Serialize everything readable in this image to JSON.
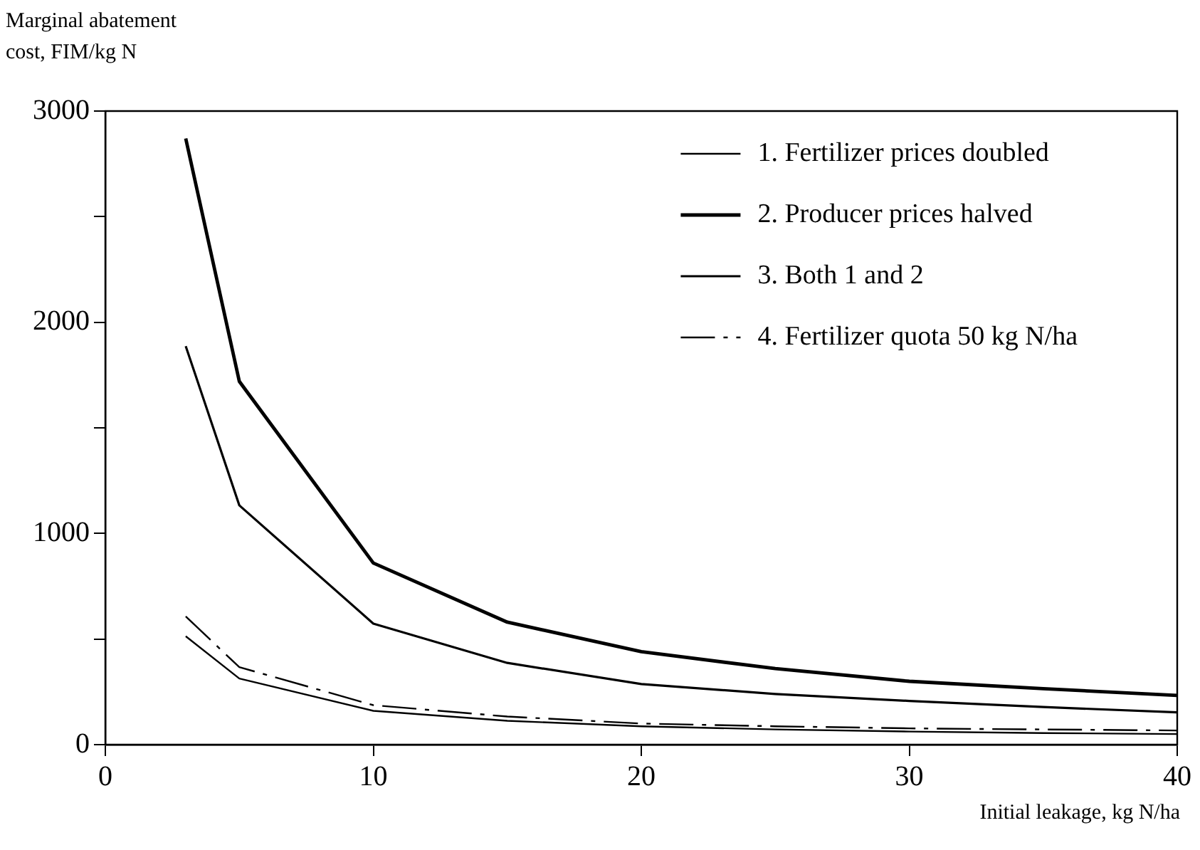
{
  "chart_data": {
    "type": "line",
    "ylabel": "Marginal abatement cost, FIM/kg N",
    "xlabel": "Initial leakage, kg N/ha",
    "x": [
      3,
      5,
      10,
      15,
      20,
      25,
      30,
      35,
      40
    ],
    "series": [
      {
        "name": "1. Fertilizer prices doubled",
        "color": "#000000",
        "line_style": "solid",
        "values": [
          513,
          313,
          160,
          113,
          87,
          72,
          62,
          55,
          50
        ]
      },
      {
        "name": "2. Producer prices halved",
        "color": "#000000",
        "line_style": "solid",
        "values": [
          2870,
          1720,
          860,
          580,
          440,
          360,
          300,
          265,
          233
        ]
      },
      {
        "name": "3. Both 1 and 2",
        "color": "#000000",
        "line_style": "solid",
        "values": [
          1887,
          1133,
          573,
          387,
          287,
          240,
          207,
          178,
          153
        ]
      },
      {
        "name": "4. Fertilizer quota 50 kg N/ha",
        "color": "#000000",
        "line_style": "dashed",
        "values": [
          607,
          367,
          187,
          133,
          100,
          87,
          77,
          72,
          67
        ]
      }
    ],
    "xlim": [
      0,
      40
    ],
    "xticks": [
      0,
      10,
      20,
      30,
      40
    ],
    "ylim": [
      0,
      3000
    ],
    "yticks": [
      0,
      {
        "value": 500,
        "label": null
      },
      1000,
      {
        "value": 1500,
        "label": null
      },
      2000,
      {
        "value": 2500,
        "label": null
      },
      3000
    ],
    "grid": false,
    "legend": "top right",
    "marker": "none"
  }
}
